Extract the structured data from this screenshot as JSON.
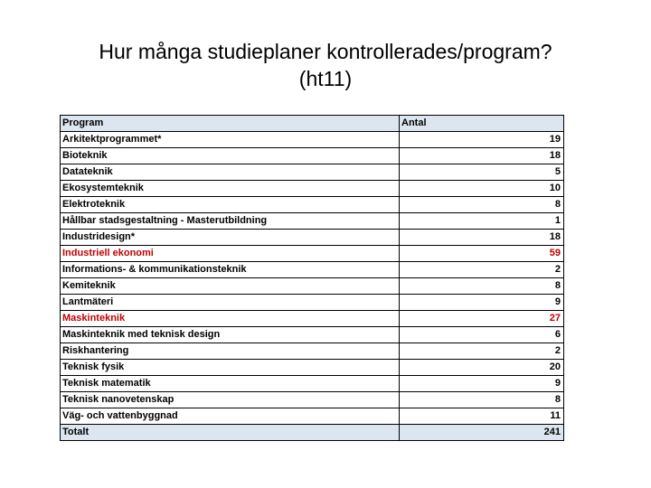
{
  "slide": {
    "title_line1": "Hur många studieplaner kontrollerades/program?",
    "title_line2": "(ht11)"
  },
  "table": {
    "headers": [
      "Program",
      "Antal"
    ],
    "rows": [
      {
        "program": "Arkitektprogrammet*",
        "antal": "19",
        "highlight": false
      },
      {
        "program": "Bioteknik",
        "antal": "18",
        "highlight": false
      },
      {
        "program": "Datateknik",
        "antal": "5",
        "highlight": false
      },
      {
        "program": "Ekosystemteknik",
        "antal": "10",
        "highlight": false
      },
      {
        "program": "Elektroteknik",
        "antal": "8",
        "highlight": false
      },
      {
        "program": "Hållbar stadsgestaltning - Masterutbildning",
        "antal": "1",
        "highlight": false
      },
      {
        "program": "Industridesign*",
        "antal": "18",
        "highlight": false
      },
      {
        "program": "Industriell ekonomi",
        "antal": "59",
        "highlight": true
      },
      {
        "program": "Informations- & kommunikationsteknik",
        "antal": "2",
        "highlight": false
      },
      {
        "program": "Kemiteknik",
        "antal": "8",
        "highlight": false
      },
      {
        "program": "Lantmäteri",
        "antal": "9",
        "highlight": false
      },
      {
        "program": "Maskinteknik",
        "antal": "27",
        "highlight": true
      },
      {
        "program": "Maskinteknik med teknisk design",
        "antal": "6",
        "highlight": false
      },
      {
        "program": "Riskhantering",
        "antal": "2",
        "highlight": false
      },
      {
        "program": "Teknisk fysik",
        "antal": "20",
        "highlight": false
      },
      {
        "program": "Teknisk matematik",
        "antal": "9",
        "highlight": false
      },
      {
        "program": "Teknisk nanovetenskap",
        "antal": "8",
        "highlight": false
      },
      {
        "program": "Väg- och vattenbyggnad",
        "antal": "11",
        "highlight": false
      }
    ],
    "total": {
      "program": "Totalt",
      "antal": "241"
    }
  },
  "colors": {
    "header_fill": "#dce6f1",
    "highlight_text": "#c00000",
    "border": "#000000",
    "title_color": "#000000",
    "text_color": "#000000",
    "bg": "#ffffff"
  }
}
